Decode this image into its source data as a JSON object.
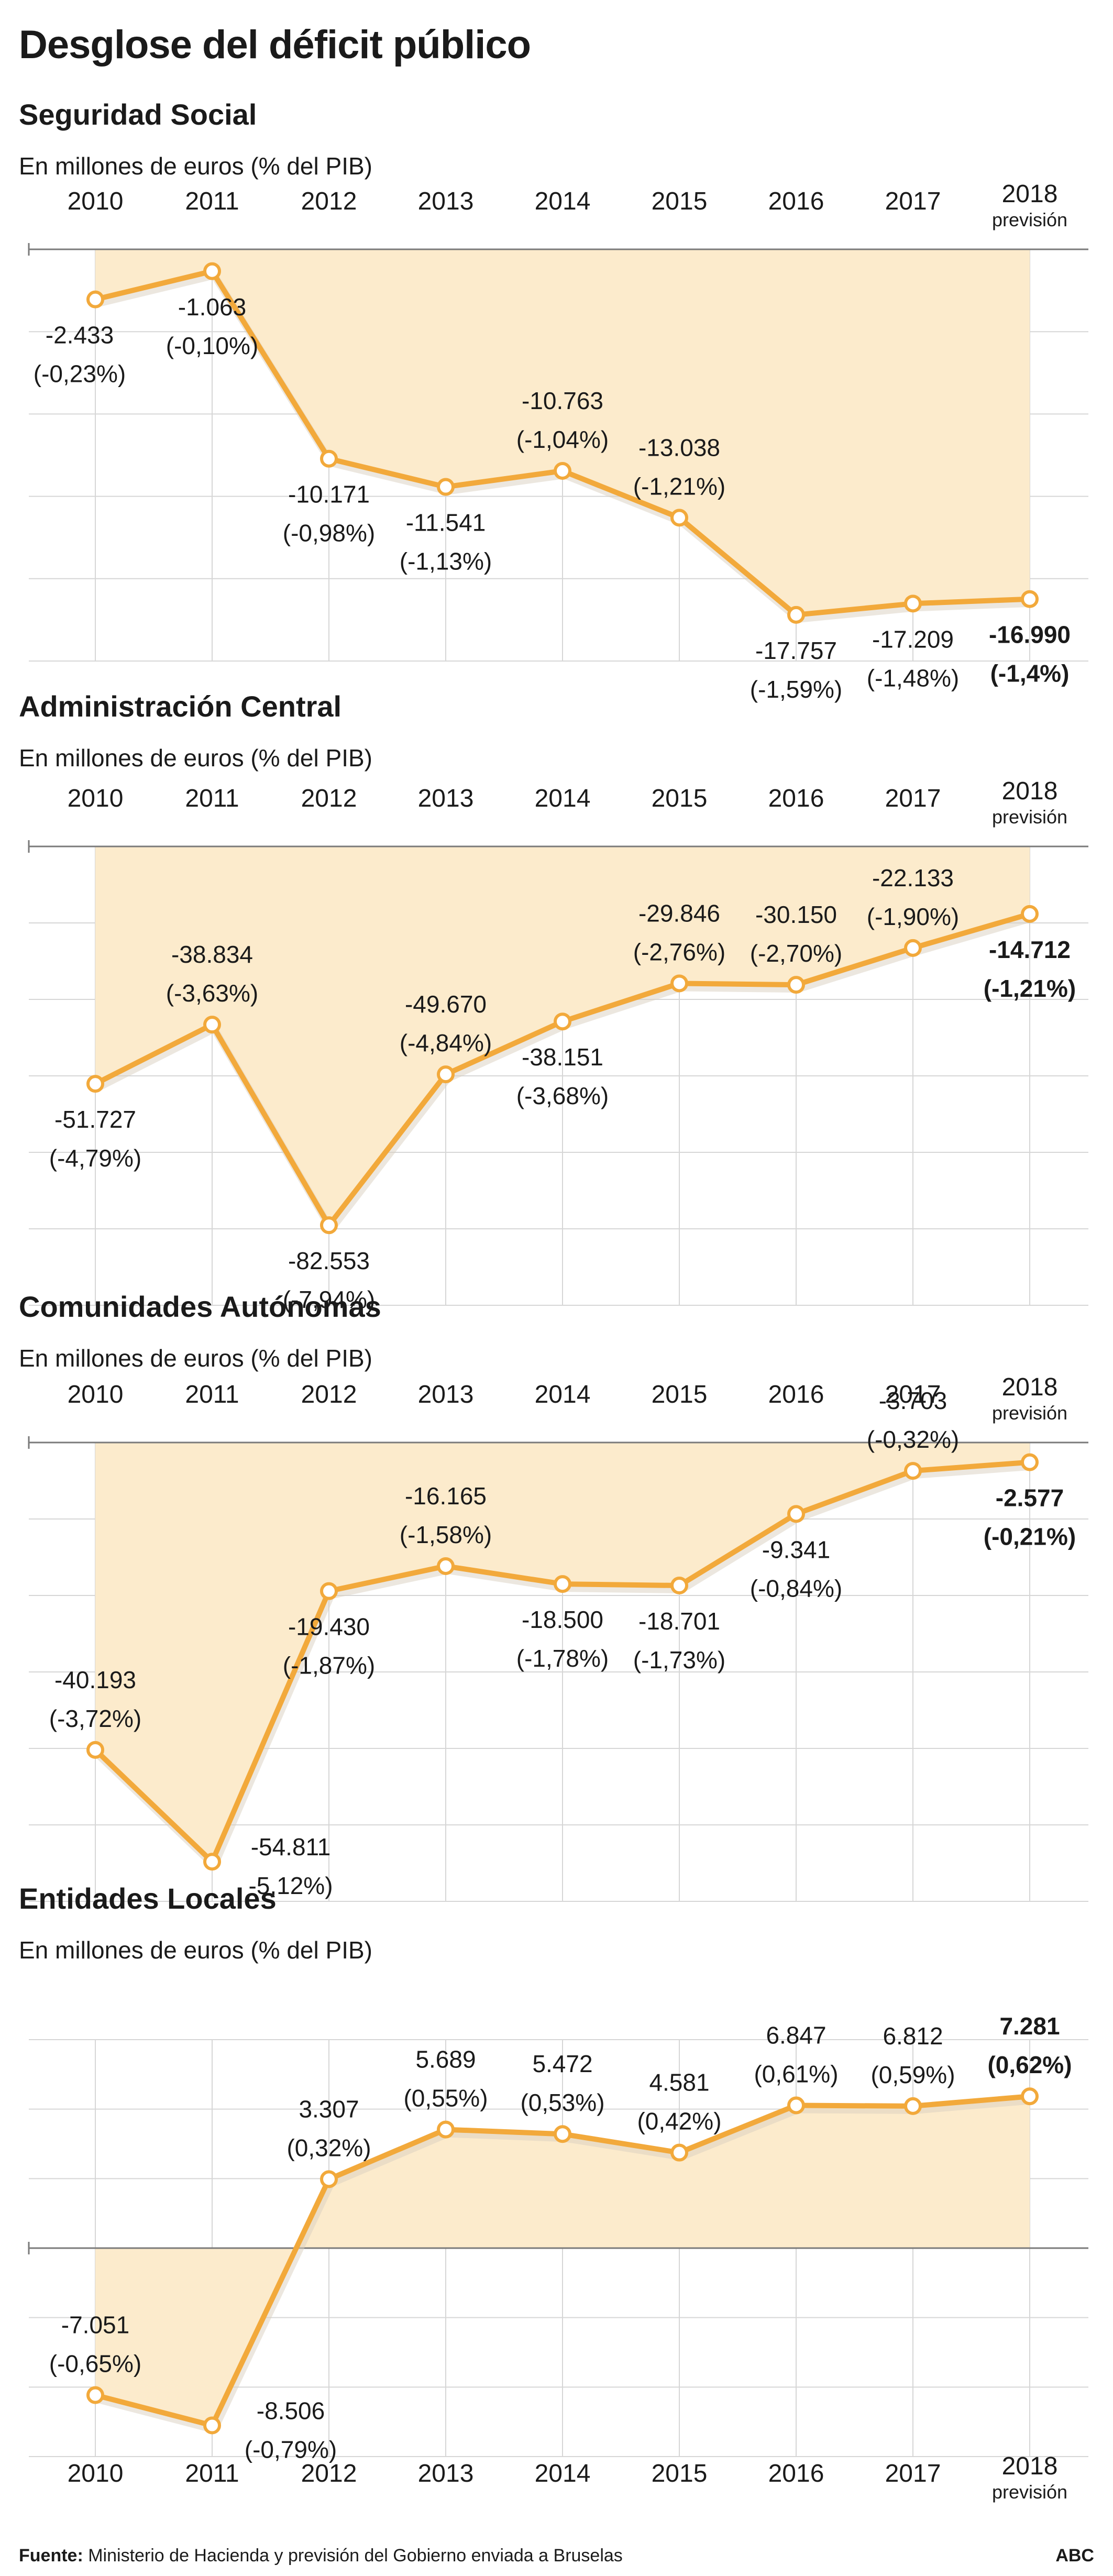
{
  "title": "Desglose del déficit público",
  "subtitle": "En millones de euros (% del PIB)",
  "year_sublabel": "previsión",
  "source_label": "Fuente:",
  "source_text": "Ministerio de Hacienda y previsión del Gobierno enviada a Bruselas",
  "brand": "ABC",
  "colors": {
    "line": "#f2a93b",
    "fill": "#fcebcc",
    "grid": "#d6d6d6",
    "axis": "#7a7a7a",
    "marker_fill": "#ffffff"
  },
  "chart_data": [
    {
      "type": "area",
      "title": "Seguridad Social",
      "x": [
        "2010",
        "2011",
        "2012",
        "2013",
        "2014",
        "2015",
        "2016",
        "2017",
        "2018"
      ],
      "values": [
        -2433,
        -1063,
        -10171,
        -11541,
        -10763,
        -13038,
        -17757,
        -17209,
        -16990
      ],
      "value_labels": [
        "-2.433",
        "-1.063",
        "-10.171",
        "-11.541",
        "-10.763",
        "-13.038",
        "-17.757",
        "-17.209",
        "-16.990"
      ],
      "pct_labels": [
        "(-0,23%)",
        "(-0,10%)",
        "(-0,98%)",
        "(-1,13%)",
        "(-1,04%)",
        "(-1,21%)",
        "(-1,59%)",
        "(-1,48%)",
        "(-1,4%)"
      ],
      "ylim": [
        -20000,
        0
      ],
      "years_position": "top",
      "grid": true
    },
    {
      "type": "area",
      "title": "Administración Central",
      "x": [
        "2010",
        "2011",
        "2012",
        "2013",
        "2014",
        "2015",
        "2016",
        "2017",
        "2018"
      ],
      "values": [
        -51727,
        -38834,
        -82553,
        -49670,
        -38151,
        -29846,
        -30150,
        -22133,
        -14712
      ],
      "value_labels": [
        "-51.727",
        "-38.834",
        "-82.553",
        "-49.670",
        "-38.151",
        "-29.846",
        "-30.150",
        "-22.133",
        "-14.712"
      ],
      "pct_labels": [
        "(-4,79%)",
        "(-3,63%)",
        "(-7,94%)",
        "(-4,84%)",
        "(-3,68%)",
        "(-2,76%)",
        "(-2,70%)",
        "(-1,90%)",
        "(-1,21%)"
      ],
      "ylim": [
        -100000,
        0
      ],
      "years_position": "top",
      "grid": true
    },
    {
      "type": "area",
      "title": "Comunidades Autónomas",
      "x": [
        "2010",
        "2011",
        "2012",
        "2013",
        "2014",
        "2015",
        "2016",
        "2017",
        "2018"
      ],
      "values": [
        -40193,
        -54811,
        -19430,
        -16165,
        -18500,
        -18701,
        -9341,
        -3703,
        -2577
      ],
      "value_labels": [
        "-40.193",
        "-54.811",
        "-19.430",
        "-16.165",
        "-18.500",
        "-18.701",
        "-9.341",
        "-3.703",
        "-2.577"
      ],
      "pct_labels": [
        "(-3,72%)",
        "-5,12%)",
        "(-1,87%)",
        "(-1,58%)",
        "(-1,78%)",
        "(-1,73%)",
        "(-0,84%)",
        "(-0,32%)",
        "(-0,21%)"
      ],
      "ylim": [
        -60000,
        0
      ],
      "years_position": "top",
      "grid": true
    },
    {
      "type": "area",
      "title": "Entidades Locales",
      "x": [
        "2010",
        "2011",
        "2012",
        "2013",
        "2014",
        "2015",
        "2016",
        "2017",
        "2018"
      ],
      "values": [
        -7051,
        -8506,
        3307,
        5689,
        5472,
        4581,
        6847,
        6812,
        7281
      ],
      "value_labels": [
        "-7.051",
        "-8.506",
        "3.307",
        "5.689",
        "5.472",
        "4.581",
        "6.847",
        "6.812",
        "7.281"
      ],
      "pct_labels": [
        "(-0,65%)",
        "(-0,79%)",
        "(0,32%)",
        "(0,55%)",
        "(0,53%)",
        "(0,42%)",
        "(0,61%)",
        "(0,59%)",
        "(0,62%)"
      ],
      "ylim": [
        -10000,
        10000
      ],
      "years_position": "bottom",
      "grid": true
    }
  ]
}
